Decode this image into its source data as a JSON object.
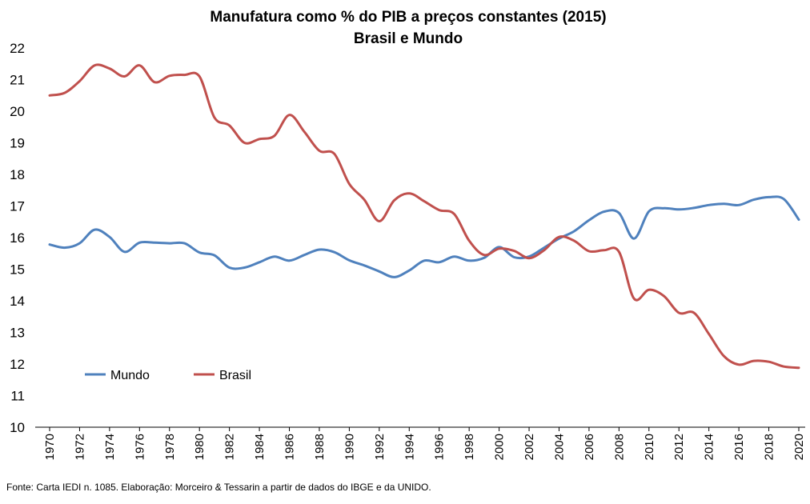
{
  "chart_data": {
    "type": "line",
    "title": "Manufatura como % do PIB a preços constantes (2015)",
    "subtitle": "Brasil e Mundo",
    "xlabel": "",
    "ylabel": "",
    "ylim": [
      10,
      22
    ],
    "yticks": [
      10,
      11,
      12,
      13,
      14,
      15,
      16,
      17,
      18,
      19,
      20,
      21,
      22
    ],
    "xticks": [
      1970,
      1972,
      1974,
      1976,
      1978,
      1980,
      1982,
      1984,
      1986,
      1988,
      1990,
      1992,
      1994,
      1996,
      1998,
      2000,
      2002,
      2004,
      2006,
      2008,
      2010,
      2012,
      2014,
      2016,
      2018,
      2020
    ],
    "grid": false,
    "legend_position": "bottom-left",
    "x": [
      1970,
      1971,
      1972,
      1973,
      1974,
      1975,
      1976,
      1977,
      1978,
      1979,
      1980,
      1981,
      1982,
      1983,
      1984,
      1985,
      1986,
      1987,
      1988,
      1989,
      1990,
      1991,
      1992,
      1993,
      1994,
      1995,
      1996,
      1997,
      1998,
      1999,
      2000,
      2001,
      2002,
      2003,
      2004,
      2005,
      2006,
      2007,
      2008,
      2009,
      2010,
      2011,
      2012,
      2013,
      2014,
      2015,
      2016,
      2017,
      2018,
      2019,
      2020
    ],
    "series": [
      {
        "name": "Mundo",
        "color": "#4f81bd",
        "values": [
          15.78,
          15.68,
          15.82,
          16.25,
          16.02,
          15.55,
          15.84,
          15.84,
          15.82,
          15.82,
          15.53,
          15.44,
          15.05,
          15.05,
          15.22,
          15.4,
          15.27,
          15.45,
          15.62,
          15.54,
          15.28,
          15.12,
          14.93,
          14.75,
          14.96,
          15.27,
          15.22,
          15.4,
          15.27,
          15.36,
          15.7,
          15.38,
          15.4,
          15.68,
          15.97,
          16.2,
          16.55,
          16.82,
          16.78,
          15.97,
          16.83,
          16.93,
          16.89,
          16.94,
          17.03,
          17.07,
          17.03,
          17.2,
          17.28,
          17.22,
          16.57
        ]
      },
      {
        "name": "Brasil",
        "color": "#c0504d",
        "values": [
          20.5,
          20.58,
          20.95,
          21.45,
          21.35,
          21.1,
          21.45,
          20.92,
          21.12,
          21.15,
          21.1,
          19.8,
          19.55,
          19.0,
          19.12,
          19.22,
          19.88,
          19.35,
          18.75,
          18.65,
          17.7,
          17.2,
          16.52,
          17.18,
          17.4,
          17.15,
          16.87,
          16.75,
          15.9,
          15.45,
          15.65,
          15.58,
          15.35,
          15.6,
          16.02,
          15.9,
          15.57,
          15.6,
          15.55,
          14.07,
          14.35,
          14.15,
          13.62,
          13.62,
          12.95,
          12.25,
          11.98,
          12.1,
          12.07,
          11.92,
          11.88
        ]
      }
    ]
  },
  "source_note": "Fonte: Carta IEDI n. 1085.  Elaboração: Morceiro & Tessarin a partir de dados do IBGE e da UNIDO."
}
